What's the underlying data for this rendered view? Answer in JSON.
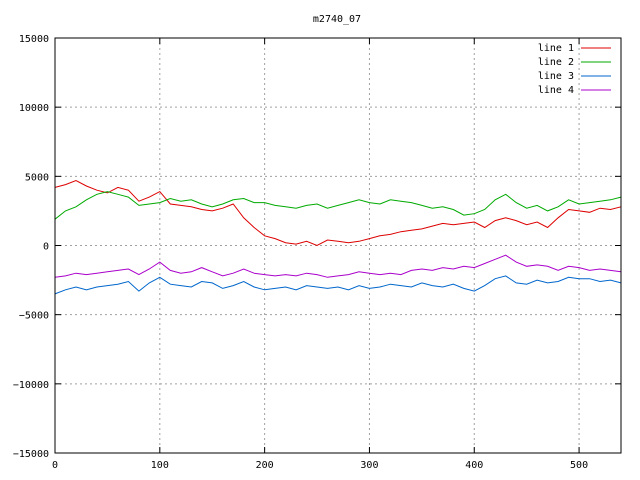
{
  "chart_data": {
    "type": "line",
    "title": "m2740_07",
    "xlabel": "",
    "ylabel": "",
    "xlim": [
      0,
      540
    ],
    "ylim": [
      -15000,
      15000
    ],
    "xticks": [
      0,
      100,
      200,
      300,
      400,
      500
    ],
    "yticks": [
      -15000,
      -10000,
      -5000,
      0,
      5000,
      10000,
      15000
    ],
    "xtick_labels": [
      "0",
      "100",
      "200",
      "300",
      "400",
      "500"
    ],
    "ytick_labels": [
      "−15000",
      "−10000",
      "−5000",
      "0",
      "5000",
      "10000",
      "15000"
    ],
    "grid": true,
    "legend": "top-right",
    "series": [
      {
        "name": "line 1",
        "color": "#dd0000",
        "x": [
          0,
          10,
          20,
          30,
          40,
          50,
          60,
          70,
          80,
          90,
          100,
          110,
          120,
          130,
          140,
          150,
          160,
          170,
          180,
          190,
          200,
          210,
          220,
          230,
          240,
          250,
          260,
          270,
          280,
          290,
          300,
          310,
          320,
          330,
          340,
          350,
          360,
          370,
          380,
          390,
          400,
          410,
          420,
          430,
          440,
          450,
          460,
          470,
          480,
          490,
          500,
          510,
          520,
          530,
          540
        ],
        "y": [
          4200,
          4400,
          4700,
          4300,
          4000,
          3800,
          4200,
          4000,
          3200,
          3500,
          3900,
          3000,
          2900,
          2800,
          2600,
          2500,
          2700,
          3000,
          2000,
          1300,
          700,
          500,
          200,
          100,
          300,
          0,
          400,
          300,
          200,
          300,
          500,
          700,
          800,
          1000,
          1100,
          1200,
          1400,
          1600,
          1500,
          1600,
          1700,
          1300,
          1800,
          2000,
          1800,
          1500,
          1700,
          1300,
          2000,
          2600,
          2500,
          2400,
          2700,
          2600,
          2800
        ]
      },
      {
        "name": "line 2",
        "color": "#00aa00",
        "x": [
          0,
          10,
          20,
          30,
          40,
          50,
          60,
          70,
          80,
          90,
          100,
          110,
          120,
          130,
          140,
          150,
          160,
          170,
          180,
          190,
          200,
          210,
          220,
          230,
          240,
          250,
          260,
          270,
          280,
          290,
          300,
          310,
          320,
          330,
          340,
          350,
          360,
          370,
          380,
          390,
          400,
          410,
          420,
          430,
          440,
          450,
          460,
          470,
          480,
          490,
          500,
          510,
          520,
          530,
          540
        ],
        "y": [
          1900,
          2500,
          2800,
          3300,
          3700,
          3900,
          3700,
          3500,
          2900,
          3000,
          3100,
          3400,
          3200,
          3300,
          3000,
          2800,
          3000,
          3300,
          3400,
          3100,
          3100,
          2900,
          2800,
          2700,
          2900,
          3000,
          2700,
          2900,
          3100,
          3300,
          3100,
          3000,
          3300,
          3200,
          3100,
          2900,
          2700,
          2800,
          2600,
          2200,
          2300,
          2600,
          3300,
          3700,
          3100,
          2700,
          2900,
          2500,
          2800,
          3300,
          3000,
          3100,
          3200,
          3300,
          3500
        ]
      },
      {
        "name": "line 3",
        "color": "#0066cc",
        "x": [
          0,
          10,
          20,
          30,
          40,
          50,
          60,
          70,
          80,
          90,
          100,
          110,
          120,
          130,
          140,
          150,
          160,
          170,
          180,
          190,
          200,
          210,
          220,
          230,
          240,
          250,
          260,
          270,
          280,
          290,
          300,
          310,
          320,
          330,
          340,
          350,
          360,
          370,
          380,
          390,
          400,
          410,
          420,
          430,
          440,
          450,
          460,
          470,
          480,
          490,
          500,
          510,
          520,
          530,
          540
        ],
        "y": [
          -3500,
          -3200,
          -3000,
          -3200,
          -3000,
          -2900,
          -2800,
          -2600,
          -3300,
          -2700,
          -2300,
          -2800,
          -2900,
          -3000,
          -2600,
          -2700,
          -3100,
          -2900,
          -2600,
          -3000,
          -3200,
          -3100,
          -3000,
          -3200,
          -2900,
          -3000,
          -3100,
          -3000,
          -3200,
          -2900,
          -3100,
          -3000,
          -2800,
          -2900,
          -3000,
          -2700,
          -2900,
          -3000,
          -2800,
          -3100,
          -3300,
          -2900,
          -2400,
          -2200,
          -2700,
          -2800,
          -2500,
          -2700,
          -2600,
          -2300,
          -2400,
          -2400,
          -2600,
          -2500,
          -2700
        ]
      },
      {
        "name": "line 4",
        "color": "#aa00cc",
        "x": [
          0,
          10,
          20,
          30,
          40,
          50,
          60,
          70,
          80,
          90,
          100,
          110,
          120,
          130,
          140,
          150,
          160,
          170,
          180,
          190,
          200,
          210,
          220,
          230,
          240,
          250,
          260,
          270,
          280,
          290,
          300,
          310,
          320,
          330,
          340,
          350,
          360,
          370,
          380,
          390,
          400,
          410,
          420,
          430,
          440,
          450,
          460,
          470,
          480,
          490,
          500,
          510,
          520,
          530,
          540
        ],
        "y": [
          -2300,
          -2200,
          -2000,
          -2100,
          -2000,
          -1900,
          -1800,
          -1700,
          -2100,
          -1700,
          -1200,
          -1800,
          -2000,
          -1900,
          -1600,
          -1900,
          -2200,
          -2000,
          -1700,
          -2000,
          -2100,
          -2200,
          -2100,
          -2200,
          -2000,
          -2100,
          -2300,
          -2200,
          -2100,
          -1900,
          -2000,
          -2100,
          -2000,
          -2100,
          -1800,
          -1700,
          -1800,
          -1600,
          -1700,
          -1500,
          -1600,
          -1300,
          -1000,
          -700,
          -1200,
          -1500,
          -1400,
          -1500,
          -1800,
          -1500,
          -1600,
          -1800,
          -1700,
          -1800,
          -1900
        ]
      }
    ]
  }
}
